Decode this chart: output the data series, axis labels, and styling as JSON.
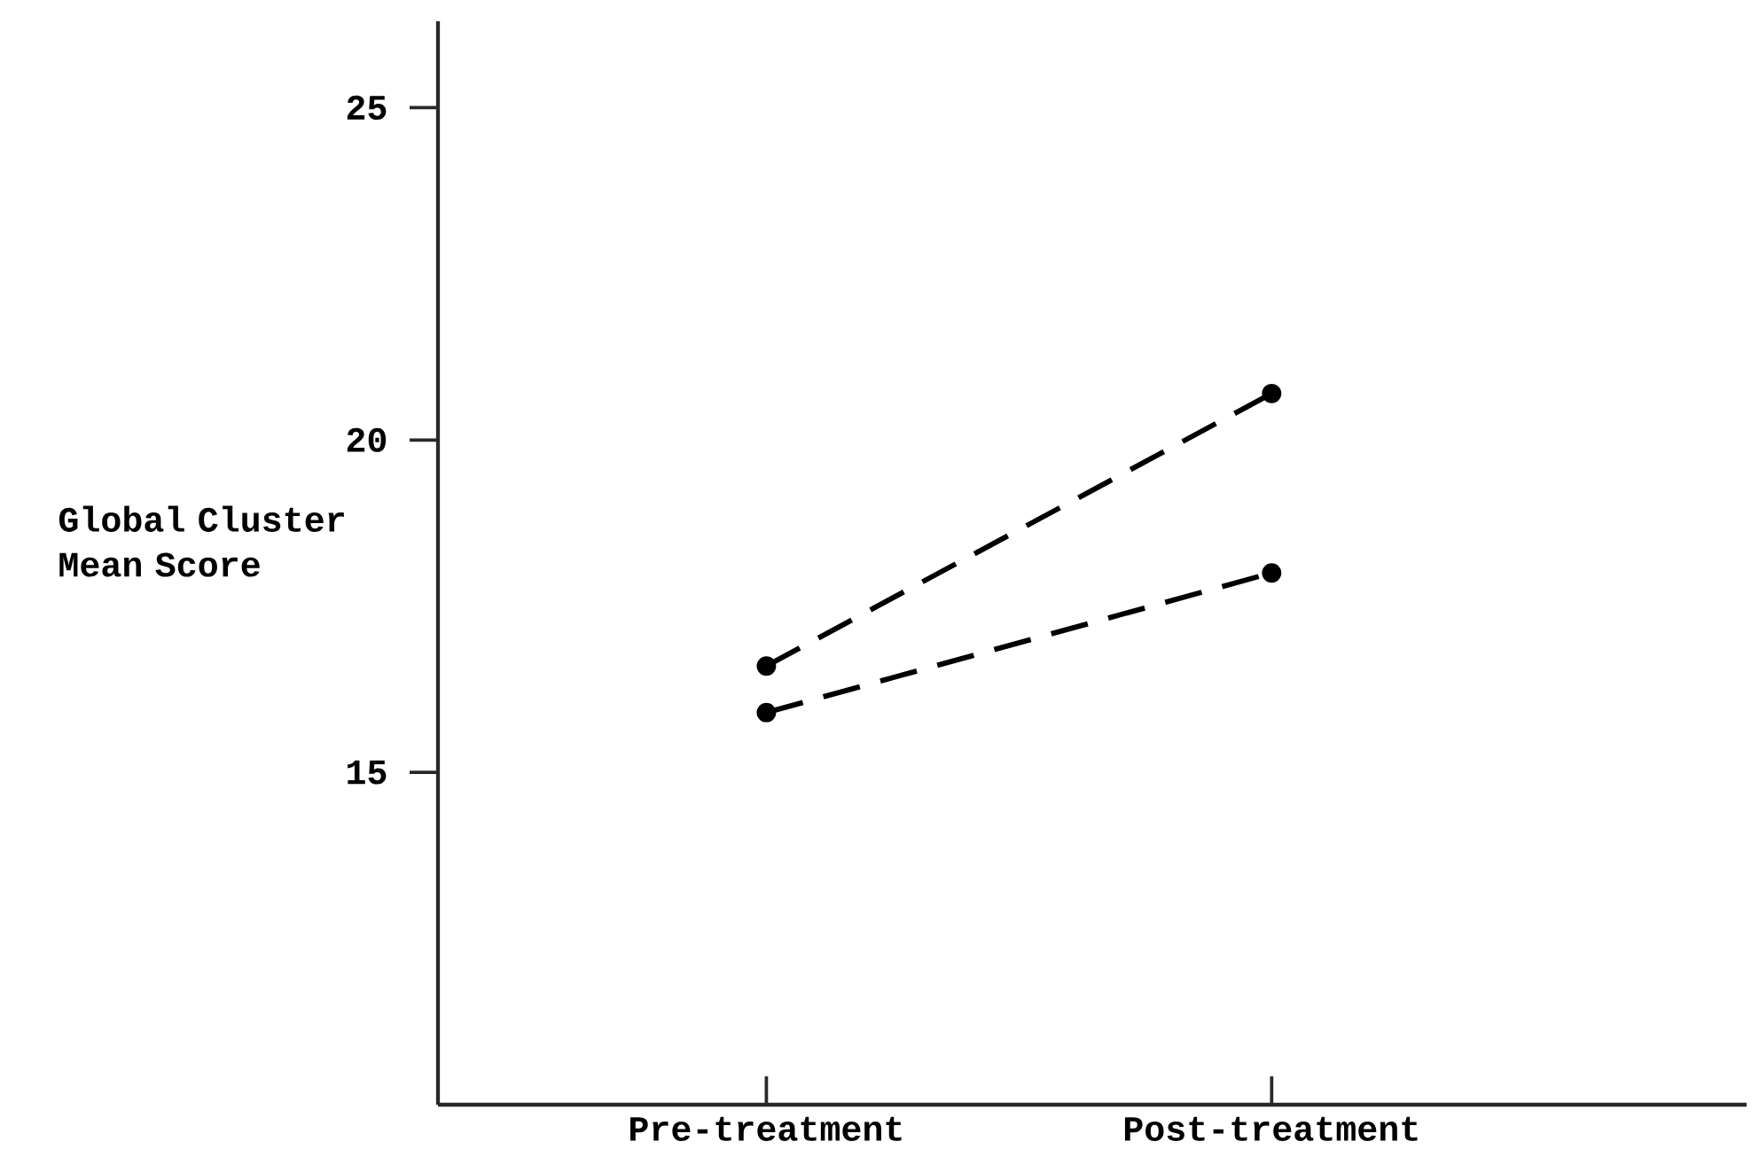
{
  "chart_data": {
    "type": "line",
    "ylabel": "Global Cluster Mean Score",
    "categories": [
      "Pre-treatment",
      "Post-treatment"
    ],
    "series": [
      {
        "color": "#000000",
        "line_style": "dashed",
        "values": [
          16.6,
          20.7
        ]
      },
      {
        "color": "#000000",
        "line_style": "dashed",
        "values": [
          15.9,
          18.0
        ]
      }
    ],
    "marker": "circle",
    "ylim": [
      10,
      26.3
    ],
    "yticks": [
      15,
      20,
      25
    ]
  }
}
